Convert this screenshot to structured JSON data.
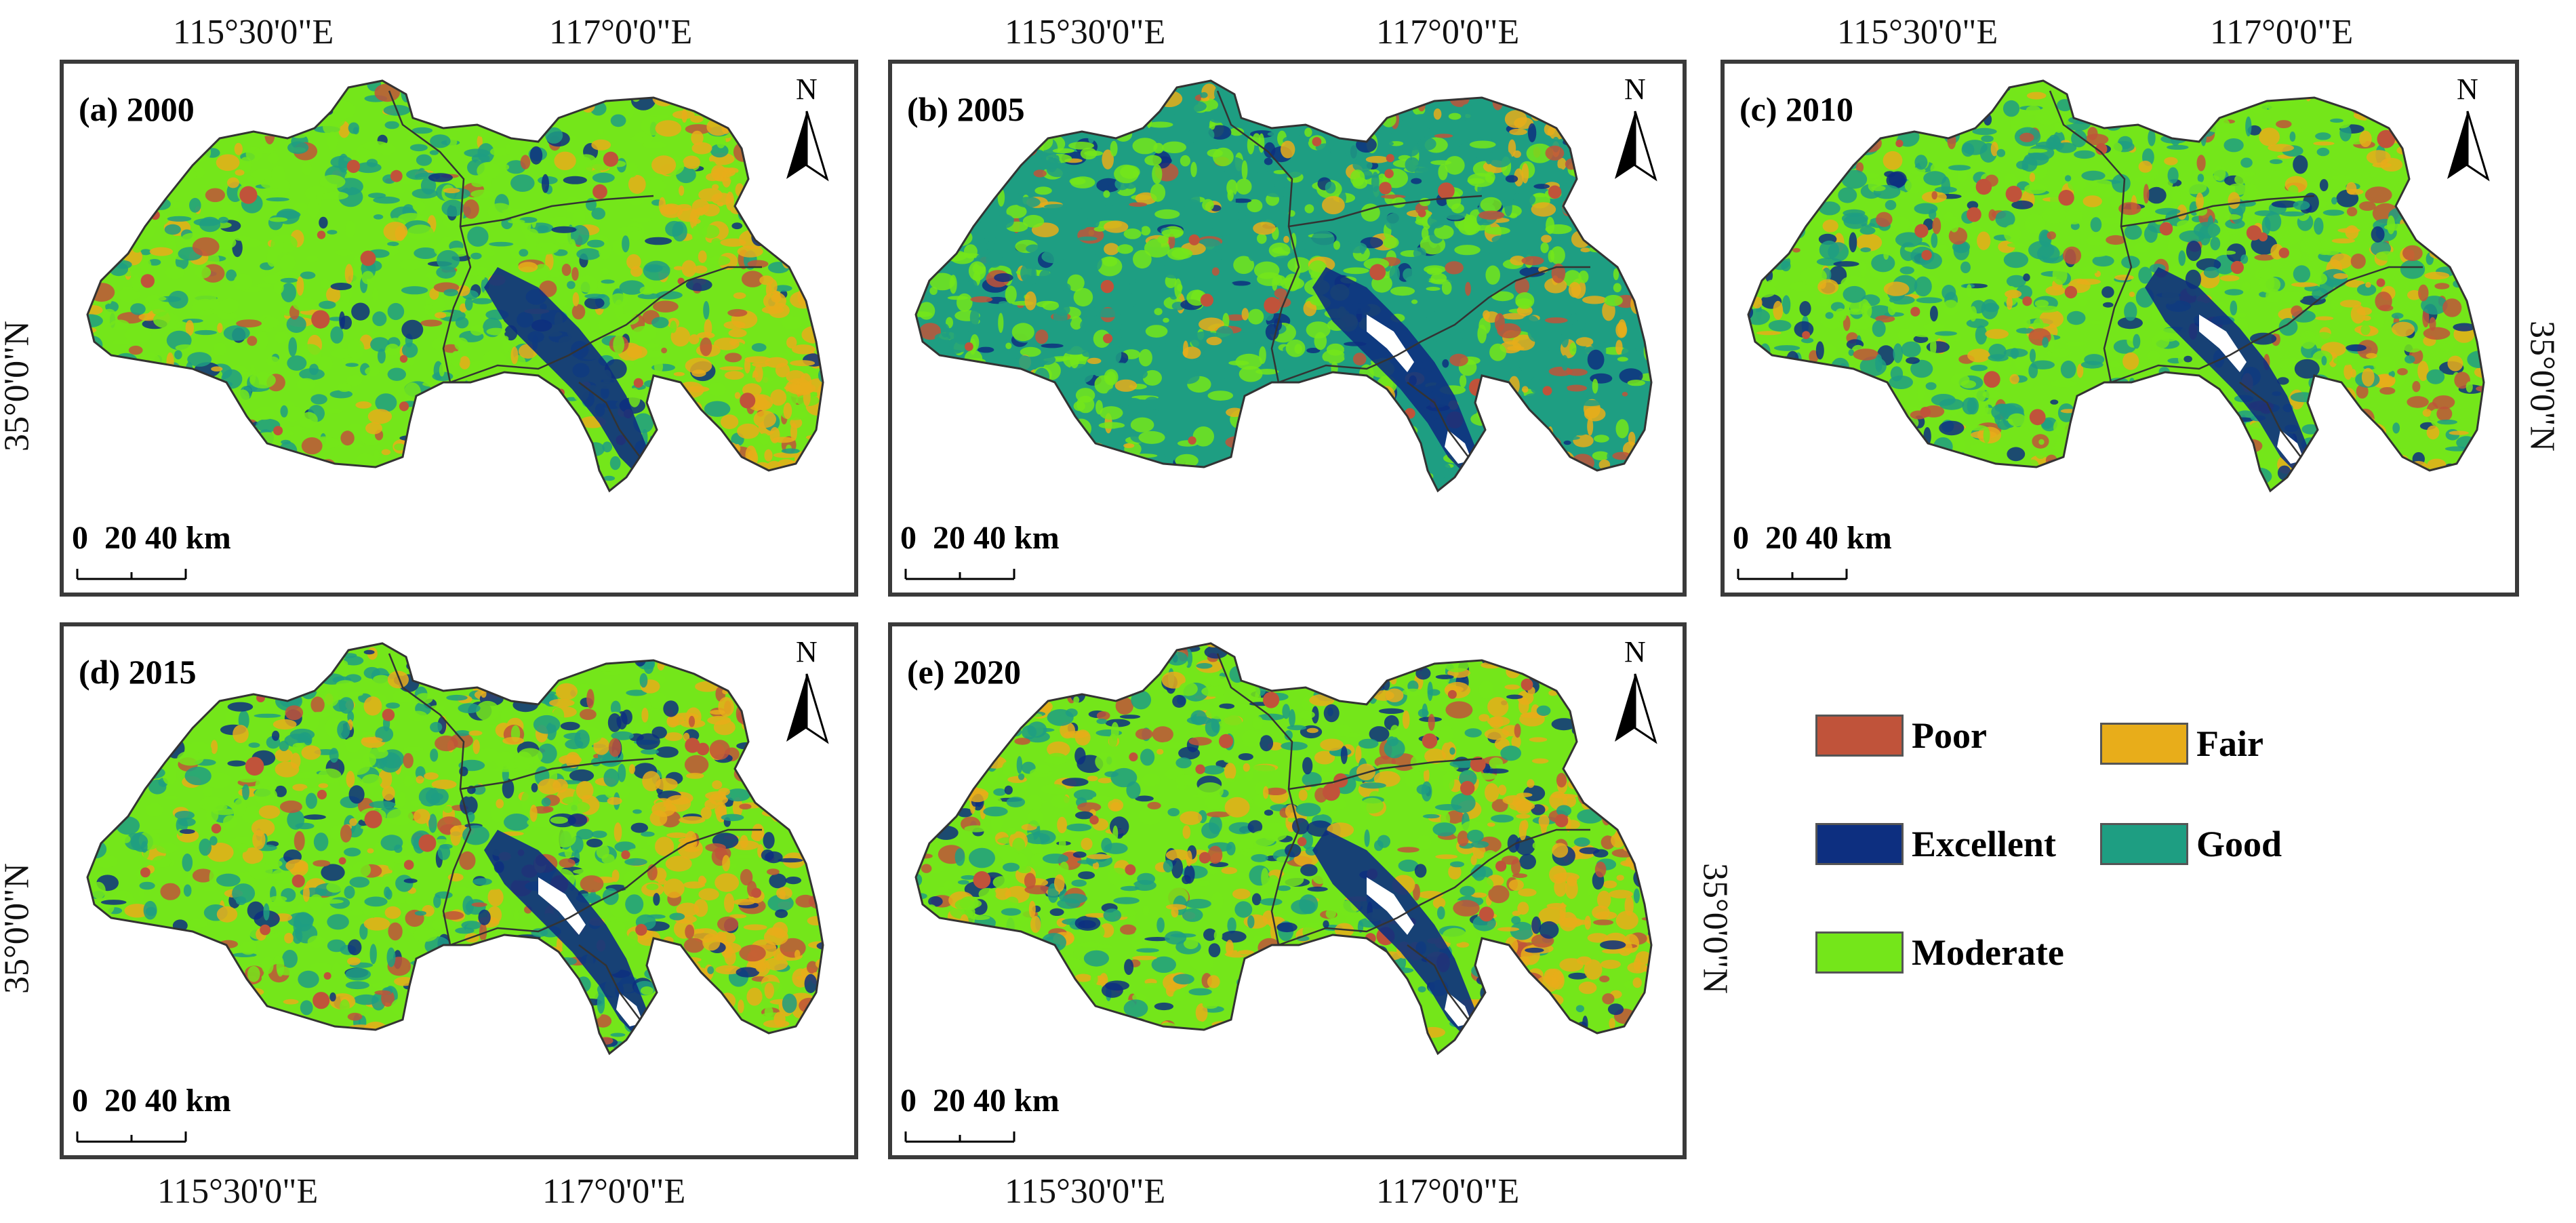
{
  "lon_labels": {
    "west": "115°30'0\"E",
    "east": "117°0'0\"E"
  },
  "lat_label": "35°0'0\"N",
  "panels": [
    {
      "title": "(a) 2000"
    },
    {
      "title": "(b) 2005"
    },
    {
      "title": "(c) 2010"
    },
    {
      "title": "(d) 2015"
    },
    {
      "title": "(e) 2020"
    }
  ],
  "scale_bar_label": "0  20 40 km",
  "north_label": "N",
  "legend": [
    {
      "label": "Poor",
      "color": "#c0533a"
    },
    {
      "label": "Fair",
      "color": "#e8ad1a"
    },
    {
      "label": "Excellent",
      "color": "#0d2f80"
    },
    {
      "label": "Good",
      "color": "#1e9e82"
    },
    {
      "label": "Moderate",
      "color": "#74e61a"
    }
  ],
  "class_colors": {
    "poor": "#c0533a",
    "fair": "#e8ad1a",
    "moderate": "#74e61a",
    "good": "#1e9e82",
    "excellent": "#0d2f80",
    "water": "#ffffff"
  }
}
